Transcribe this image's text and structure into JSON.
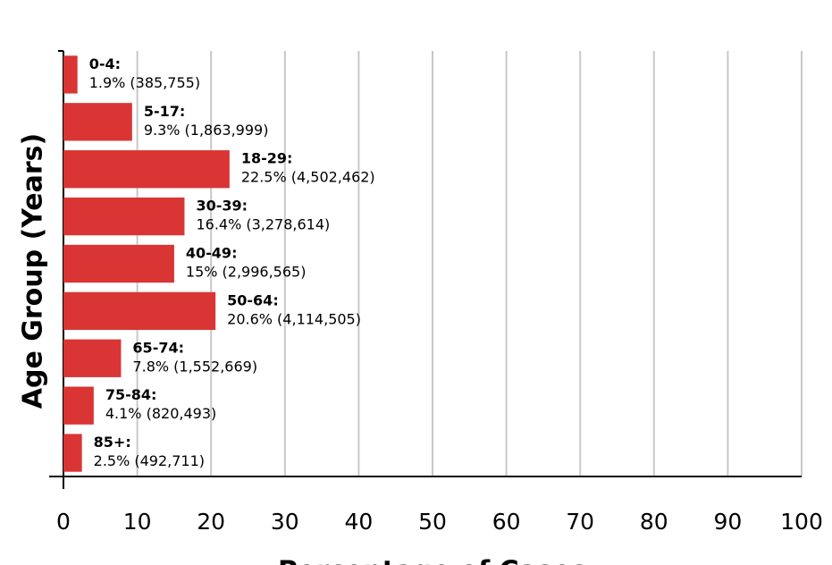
{
  "chart_data": {
    "type": "bar",
    "orientation": "horizontal",
    "xlabel": "Percentage of Cases",
    "ylabel": "Age Group (Years)",
    "categories": [
      "0-4:",
      "5-17:",
      "18-29:",
      "30-39:",
      "40-49:",
      "50-64:",
      "65-74:",
      "75-84:",
      "85+:"
    ],
    "values": [
      1.9,
      9.3,
      22.5,
      16.4,
      15,
      20.6,
      7.8,
      4.1,
      2.5
    ],
    "value_labels": [
      "1.9% (385,755)",
      "9.3% (1,863,999)",
      "22.5% (4,502,462)",
      "16.4% (3,278,614)",
      "15% (2,996,565)",
      "20.6% (4,114,505)",
      "7.8% (1,552,669)",
      "4.1% (820,493)",
      "2.5% (492,711)"
    ],
    "color": "#d93535",
    "xlim": [
      0,
      100
    ],
    "xticks": [
      0,
      10,
      20,
      30,
      40,
      50,
      60,
      70,
      80,
      90,
      100
    ],
    "grid": true
  }
}
